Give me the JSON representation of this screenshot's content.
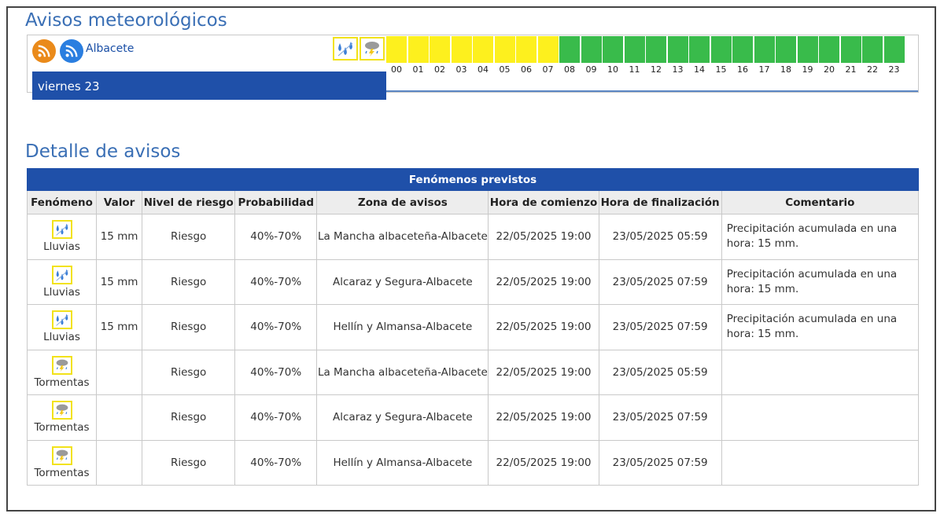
{
  "page": {
    "title": "Avisos meteorológicos",
    "detail_title": "Detalle de avisos"
  },
  "timeline": {
    "location": "Albacete",
    "day": "viernes 23",
    "phenomena_icons": [
      "rain-icon",
      "storm-icon"
    ],
    "hours": [
      "00",
      "01",
      "02",
      "03",
      "04",
      "05",
      "06",
      "07",
      "08",
      "09",
      "10",
      "11",
      "12",
      "13",
      "14",
      "15",
      "16",
      "17",
      "18",
      "19",
      "20",
      "21",
      "22",
      "23"
    ],
    "levels": [
      "yellow",
      "yellow",
      "yellow",
      "yellow",
      "yellow",
      "yellow",
      "yellow",
      "yellow",
      "green",
      "green",
      "green",
      "green",
      "green",
      "green",
      "green",
      "green",
      "green",
      "green",
      "green",
      "green",
      "green",
      "green",
      "green",
      "green"
    ],
    "colors": {
      "yellow": "#fdf01e",
      "green": "#39bb4b",
      "bar": "#1f50a9"
    }
  },
  "table": {
    "caption": "Fenómenos previstos",
    "headers": [
      "Fenómeno",
      "Valor",
      "Nivel de riesgo",
      "Probabilidad",
      "Zona de avisos",
      "Hora de comienzo",
      "Hora de finalización",
      "Comentario"
    ],
    "rows": [
      {
        "icon": "rain-icon",
        "fenomeno": "Lluvias",
        "valor": "15 mm",
        "nivel": "Riesgo",
        "prob": "40%-70%",
        "zona": "La Mancha albaceteña-Albacete",
        "inicio": "22/05/2025 19:00",
        "fin": "23/05/2025 05:59",
        "comentario": "Precipitación acumulada en una hora: 15 mm."
      },
      {
        "icon": "rain-icon",
        "fenomeno": "Lluvias",
        "valor": "15 mm",
        "nivel": "Riesgo",
        "prob": "40%-70%",
        "zona": "Alcaraz y Segura-Albacete",
        "inicio": "22/05/2025 19:00",
        "fin": "23/05/2025 07:59",
        "comentario": "Precipitación acumulada en una hora: 15 mm."
      },
      {
        "icon": "rain-icon",
        "fenomeno": "Lluvias",
        "valor": "15 mm",
        "nivel": "Riesgo",
        "prob": "40%-70%",
        "zona": "Hellín y Almansa-Albacete",
        "inicio": "22/05/2025 19:00",
        "fin": "23/05/2025 07:59",
        "comentario": "Precipitación acumulada en una hora: 15 mm."
      },
      {
        "icon": "storm-icon",
        "fenomeno": "Tormentas",
        "valor": "",
        "nivel": "Riesgo",
        "prob": "40%-70%",
        "zona": "La Mancha albaceteña-Albacete",
        "inicio": "22/05/2025 19:00",
        "fin": "23/05/2025 05:59",
        "comentario": ""
      },
      {
        "icon": "storm-icon",
        "fenomeno": "Tormentas",
        "valor": "",
        "nivel": "Riesgo",
        "prob": "40%-70%",
        "zona": "Alcaraz y Segura-Albacete",
        "inicio": "22/05/2025 19:00",
        "fin": "23/05/2025 07:59",
        "comentario": ""
      },
      {
        "icon": "storm-icon",
        "fenomeno": "Tormentas",
        "valor": "",
        "nivel": "Riesgo",
        "prob": "40%-70%",
        "zona": "Hellín y Almansa-Albacete",
        "inicio": "22/05/2025 19:00",
        "fin": "23/05/2025 07:59",
        "comentario": ""
      }
    ]
  }
}
